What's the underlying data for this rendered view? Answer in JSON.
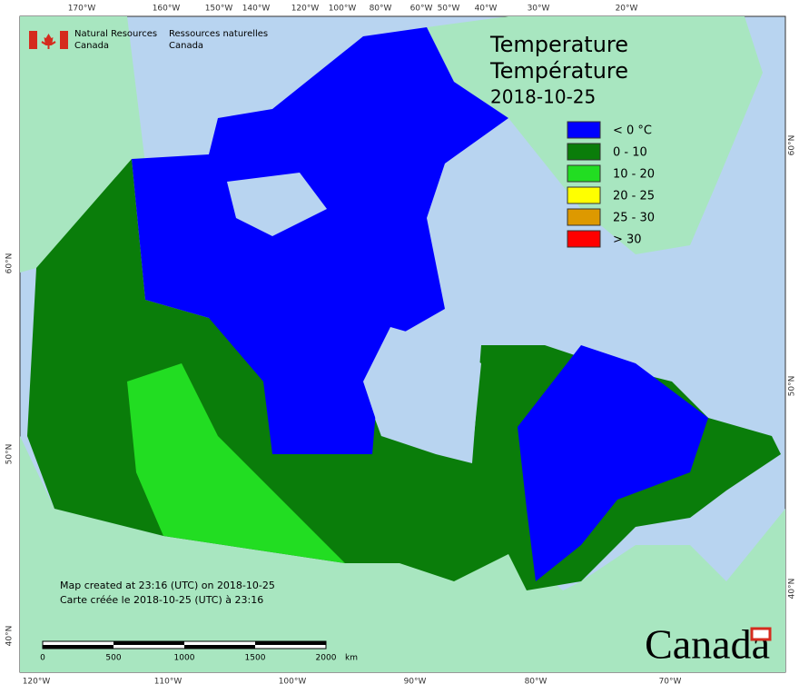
{
  "header": {
    "agency_en": "Natural Resources",
    "country_en": "Canada",
    "agency_fr": "Ressources naturelles",
    "country_fr": "Canada"
  },
  "title": {
    "en": "Temperature",
    "fr": "Température",
    "date": "2018-10-25"
  },
  "legend": [
    {
      "label": "< 0 °C",
      "color": "#0000ff"
    },
    {
      "label": "0 - 10",
      "color": "#0a7d0a"
    },
    {
      "label": "10 - 20",
      "color": "#22dd22"
    },
    {
      "label": "20 - 25",
      "color": "#ffff00"
    },
    {
      "label": "25 - 30",
      "color": "#dd9900"
    },
    {
      "label": "> 30",
      "color": "#ff0000"
    }
  ],
  "graticule": {
    "top": [
      "170°W",
      "160°W",
      "150°W",
      "140°W",
      "120°W",
      "100°W",
      "80°W",
      "60°W",
      "50°W",
      "40°W",
      "30°W",
      "20°W"
    ],
    "bottom": [
      "120°W",
      "110°W",
      "100°W",
      "90°W",
      "80°W",
      "70°W"
    ],
    "left": [
      "60°N",
      "50°N",
      "40°N"
    ],
    "right": [
      "60°N",
      "50°N",
      "40°N"
    ]
  },
  "notes": {
    "created_en": "Map created at 23:16 (UTC) on 2018-10-25",
    "created_fr": "Carte créée le 2018-10-25 (UTC) à 23:16"
  },
  "scale": {
    "ticks": [
      "0",
      "500",
      "1000",
      "1500",
      "2000"
    ],
    "unit": "km"
  },
  "wordmark": "Canada"
}
